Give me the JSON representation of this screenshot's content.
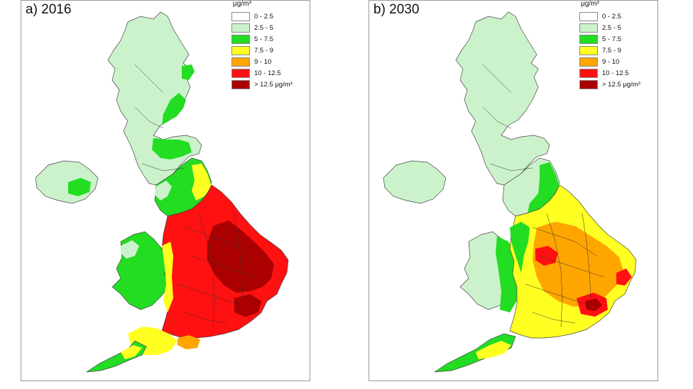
{
  "panels": [
    {
      "id": "a",
      "title": "a) 2016",
      "legend": {
        "unit": "μg/m³",
        "items": [
          {
            "label": "0 - 2.5",
            "color": "#ffffff"
          },
          {
            "label": "2.5 - 5",
            "color": "#ccf2cc"
          },
          {
            "label": "5 - 7.5",
            "color": "#22dd22"
          },
          {
            "label": "7.5 - 9",
            "color": "#ffff22"
          },
          {
            "label": "9 - 10",
            "color": "#ffa500"
          },
          {
            "label": "10 - 12.5",
            "color": "#ff1111"
          },
          {
            "label": "> 12.5 μg/m³",
            "color": "#aa0000"
          }
        ]
      }
    },
    {
      "id": "b",
      "title": "b) 2030",
      "legend": {
        "unit": "μg/m³",
        "items": [
          {
            "label": "0 - 2.5",
            "color": "#ffffff"
          },
          {
            "label": "2.5 - 5",
            "color": "#ccf2cc"
          },
          {
            "label": "5 - 7.5",
            "color": "#22dd22"
          },
          {
            "label": "7.5 - 9",
            "color": "#ffff22"
          },
          {
            "label": "9 - 10",
            "color": "#ffa500"
          },
          {
            "label": "10 - 12.5",
            "color": "#ff1111"
          },
          {
            "label": "> 12.5 μg/m³",
            "color": "#aa0000"
          }
        ]
      }
    }
  ],
  "colors": {
    "very_light_green": "#ccf2cc",
    "green": "#22dd22",
    "yellow": "#ffff22",
    "orange": "#ffa500",
    "red": "#ff1111",
    "dark_red": "#aa0000",
    "border": "#555555"
  }
}
